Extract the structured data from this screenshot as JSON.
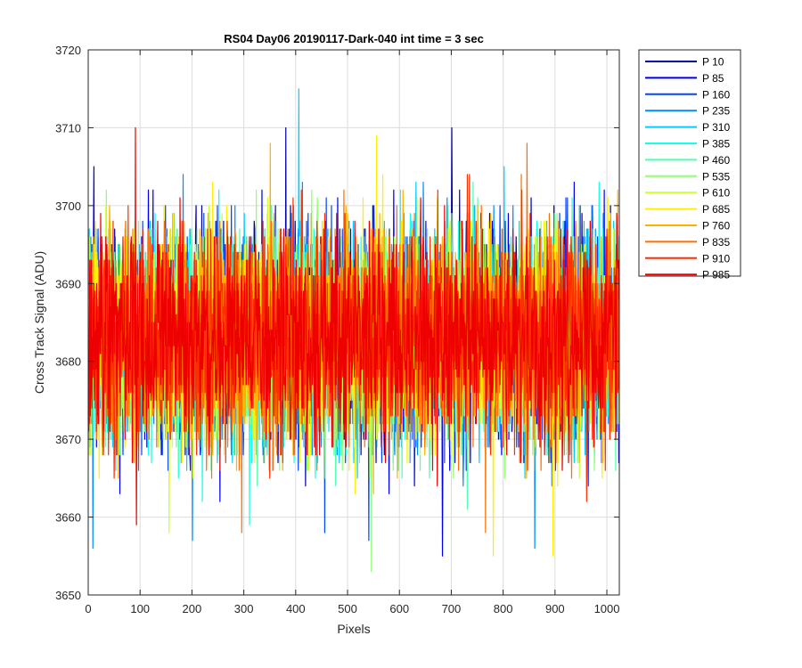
{
  "chart_data": {
    "type": "line",
    "title": "RS04 Day06 20190117-Dark-040 int time = 3 sec",
    "xlabel": "Pixels",
    "ylabel": "Cross Track Signal (ADU)",
    "xlim": [
      0,
      1024
    ],
    "ylim": [
      3650,
      3720
    ],
    "xticks": [
      0,
      100,
      200,
      300,
      400,
      500,
      600,
      700,
      800,
      900,
      1000
    ],
    "yticks": [
      3650,
      3660,
      3670,
      3680,
      3690,
      3700,
      3710,
      3720
    ],
    "grid": true,
    "legend_position": "outside-top-right",
    "x_points": 1024,
    "noise_mean": 3683,
    "noise_sigma": 7,
    "series": [
      {
        "name": "P 10",
        "color": "#0000a8",
        "spikes": [
          [
            380,
            3710
          ],
          [
            700,
            3710
          ]
        ]
      },
      {
        "name": "P 85",
        "color": "#0000f0",
        "spikes": [
          [
            682,
            3655
          ],
          [
            60,
            3663
          ]
        ]
      },
      {
        "name": "P 160",
        "color": "#0046ff",
        "spikes": [
          [
            455,
            3658
          ],
          [
            540,
            3657
          ]
        ]
      },
      {
        "name": "P 235",
        "color": "#008cff",
        "spikes": [
          [
            8,
            3656
          ],
          [
            200,
            3657
          ],
          [
            860,
            3656
          ]
        ]
      },
      {
        "name": "P 310",
        "color": "#00cdff",
        "spikes": [
          [
            405,
            3715
          ]
        ]
      },
      {
        "name": "P 385",
        "color": "#14ffeb",
        "spikes": [
          [
            310,
            3659
          ]
        ]
      },
      {
        "name": "P 460",
        "color": "#52ffad",
        "spikes": [
          [
            730,
            3661
          ]
        ]
      },
      {
        "name": "P 535",
        "color": "#8fff70",
        "spikes": [
          [
            545,
            3653
          ]
        ]
      },
      {
        "name": "P 610",
        "color": "#cdff32",
        "spikes": [
          [
            155,
            3658
          ]
        ]
      },
      {
        "name": "P 685",
        "color": "#fff000",
        "spikes": [
          [
            555,
            3709
          ],
          [
            895,
            3655
          ],
          [
            780,
            3655
          ]
        ]
      },
      {
        "name": "P 760",
        "color": "#ffb000",
        "spikes": [
          [
            350,
            3708
          ]
        ]
      },
      {
        "name": "P 835",
        "color": "#ff6f00",
        "spikes": [
          [
            845,
            3708
          ],
          [
            295,
            3658
          ],
          [
            765,
            3658
          ]
        ]
      },
      {
        "name": "P 910",
        "color": "#ff2e00",
        "spikes": [
          [
            960,
            3662
          ]
        ]
      },
      {
        "name": "P 985",
        "color": "#ee0000",
        "spikes": [
          [
            90,
            3710
          ],
          [
            92,
            3659
          ]
        ]
      }
    ]
  }
}
